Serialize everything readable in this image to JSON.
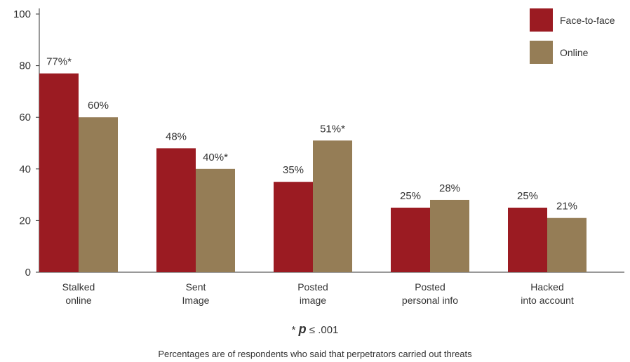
{
  "chart_data": {
    "type": "bar",
    "categories": [
      [
        "Stalked",
        "online"
      ],
      [
        "Sent",
        "Image"
      ],
      [
        "Posted",
        "image"
      ],
      [
        "Posted",
        "personal info"
      ],
      [
        "Hacked",
        "into account"
      ]
    ],
    "series": [
      {
        "name": "Face-to-face",
        "color": "#9b1b22",
        "values": [
          77,
          48,
          35,
          25,
          25
        ],
        "labels": [
          "77%*",
          "48%",
          "35%",
          "25%",
          "25%"
        ]
      },
      {
        "name": "Online",
        "color": "#957d56",
        "values": [
          60,
          40,
          51,
          28,
          21
        ],
        "labels": [
          "60%",
          "40%*",
          "51%*",
          "28%",
          "21%"
        ]
      }
    ],
    "ylim": [
      0,
      100
    ],
    "yticks": [
      0,
      20,
      40,
      60,
      80,
      100
    ],
    "grid": false,
    "legend_position": "top-right"
  },
  "footnote": {
    "prefix": "* ",
    "p": "p",
    "suffix": " ≤ .001"
  },
  "caption": "Percentages are of respondents who said that perpetrators carried out threats"
}
